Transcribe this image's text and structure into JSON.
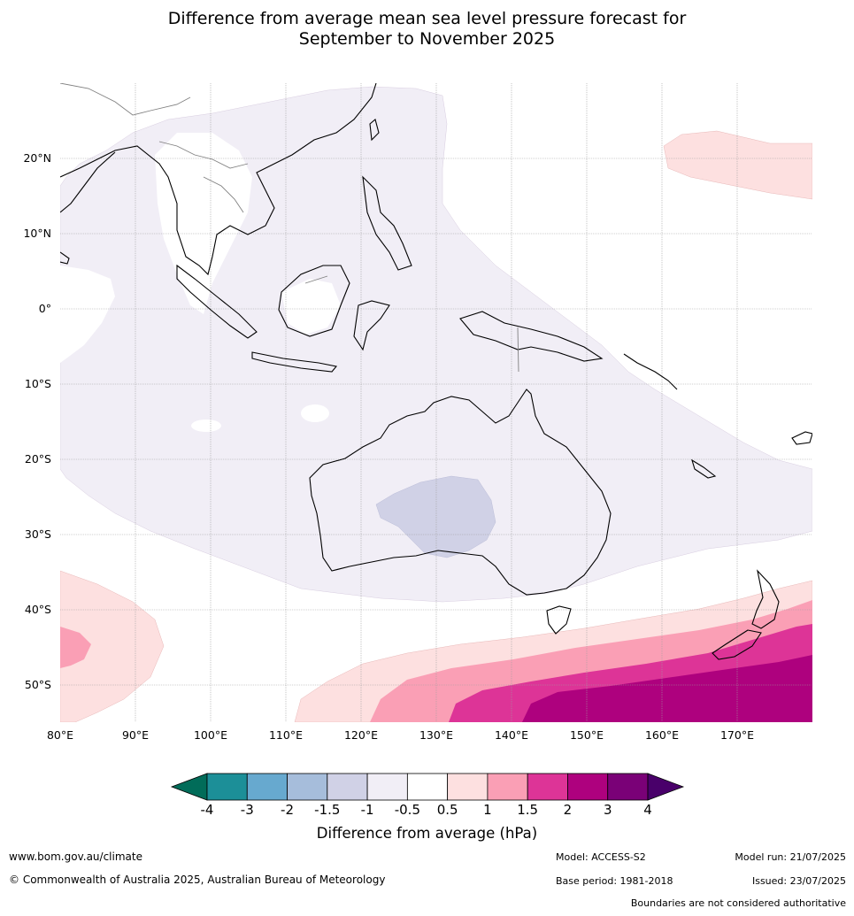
{
  "title": {
    "line1": "Difference from average mean sea level pressure forecast for",
    "line2": "September to November 2025"
  },
  "map": {
    "lon_labels": [
      "80°E",
      "90°E",
      "100°E",
      "110°E",
      "120°E",
      "130°E",
      "140°E",
      "150°E",
      "160°E",
      "170°E"
    ],
    "lat_labels": [
      "20°N",
      "10°N",
      "0°",
      "10°S",
      "20°S",
      "30°S",
      "40°S",
      "50°S"
    ],
    "extent": {
      "lon": [
        80,
        180
      ],
      "lat": [
        -55,
        30
      ]
    },
    "coastline_color": "#000000",
    "border_color": "#808080"
  },
  "colorbar": {
    "title": "Difference from average (hPa)",
    "tick_labels": [
      "-4",
      "-3",
      "-2",
      "-1.5",
      "-1",
      "-0.5",
      "0.5",
      "1",
      "1.5",
      "2",
      "3",
      "4"
    ],
    "colors": {
      "below_min": "#016c59",
      "bins": [
        "#1c8f98",
        "#67a9cf",
        "#a6bddb",
        "#d0d1e6",
        "#f1eef6",
        "#ffffff",
        "#fde0e0",
        "#fa9fb5",
        "#dd3497",
        "#ae017e",
        "#7a0177"
      ],
      "above_max": "#49006a"
    }
  },
  "footer": {
    "website": "www.bom.gov.au/climate",
    "copyright": "© Commonwealth of Australia 2025, Australian Bureau of Meteorology",
    "model": "Model: ACCESS-S2",
    "model_run": "Model run: 21/07/2025",
    "base_period": "Base period: 1981-2018",
    "issued": "Issued: 23/07/2025",
    "disclaimer": "Boundaries are not considered authoritative"
  }
}
